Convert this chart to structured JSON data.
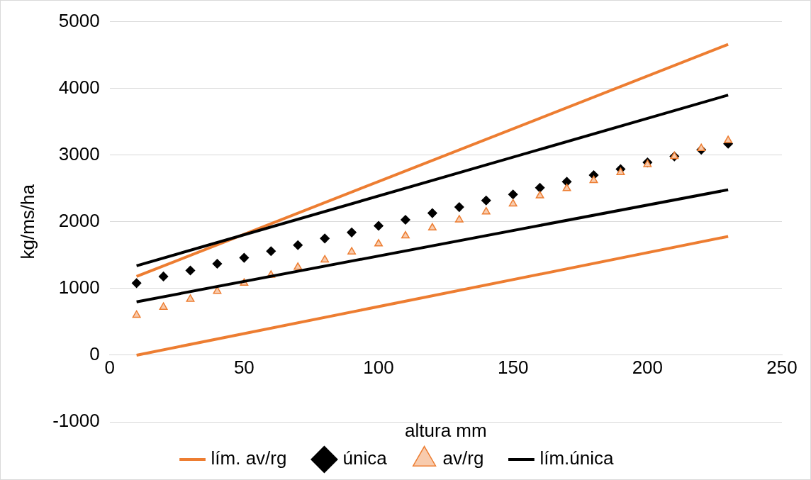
{
  "chart_data": {
    "type": "scatter",
    "xlabel": "altura mm",
    "ylabel": "kg/ms/ha",
    "xlim": [
      0,
      250
    ],
    "xticks": [
      0,
      50,
      100,
      150,
      200,
      250
    ],
    "ylim": [
      -1000,
      5000
    ],
    "yticks": [
      -1000,
      0,
      1000,
      2000,
      3000,
      4000,
      5000
    ],
    "grid": "y",
    "legend": "bottom",
    "series": [
      {
        "name": "lím. av/rg",
        "type": "line",
        "marker": "none",
        "color": "#ed7d31",
        "x": [
          10,
          230
        ],
        "values": [
          1180,
          4660
        ]
      },
      {
        "name": "única",
        "type": "scatter",
        "marker": "diamond",
        "color": "#000000",
        "x": [
          10,
          20,
          30,
          40,
          50,
          60,
          70,
          80,
          90,
          100,
          110,
          120,
          130,
          140,
          150,
          160,
          170,
          180,
          190,
          200,
          210,
          220,
          230
        ],
        "values": [
          1080,
          1180,
          1270,
          1370,
          1460,
          1560,
          1650,
          1750,
          1840,
          1940,
          2030,
          2130,
          2220,
          2320,
          2410,
          2510,
          2600,
          2700,
          2790,
          2890,
          2980,
          3080,
          3170
        ]
      },
      {
        "name": "av/rg",
        "type": "scatter",
        "marker": "triangle",
        "color": "#ed7d31",
        "x": [
          10,
          20,
          30,
          40,
          50,
          60,
          70,
          80,
          90,
          100,
          110,
          120,
          130,
          140,
          150,
          160,
          170,
          180,
          190,
          200,
          210,
          220,
          230
        ],
        "values": [
          600,
          720,
          840,
          960,
          1080,
          1200,
          1320,
          1430,
          1550,
          1670,
          1790,
          1910,
          2030,
          2150,
          2270,
          2390,
          2500,
          2620,
          2740,
          2860,
          2980,
          3100,
          3220
        ]
      },
      {
        "name": "lím.única",
        "type": "line",
        "marker": "none",
        "color": "#000000",
        "x": [
          10,
          230
        ],
        "values": [
          1340,
          3900
        ]
      },
      {
        "type": "line",
        "marker": "none",
        "color": "#ed7d31",
        "x": [
          10,
          230
        ],
        "values": [
          0,
          1780
        ]
      },
      {
        "type": "line",
        "marker": "none",
        "color": "#000000",
        "x": [
          10,
          230
        ],
        "values": [
          800,
          2480
        ]
      }
    ]
  }
}
